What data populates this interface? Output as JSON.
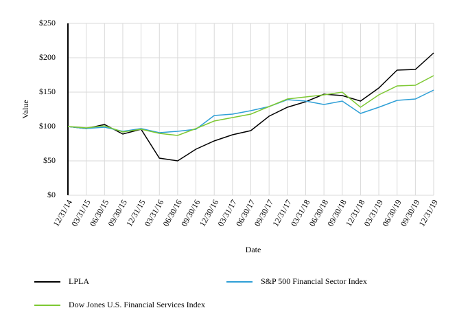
{
  "chart_data": {
    "type": "line",
    "x_label": "Date",
    "y_label": "Value",
    "categories": [
      "12/31/14",
      "03/31/15",
      "06/30/15",
      "09/30/15",
      "12/31/15",
      "03/31/16",
      "06/30/16",
      "09/30/16",
      "12/30/16",
      "03/31/17",
      "06/30/17",
      "09/30/17",
      "12/31/17",
      "03/31/18",
      "06/30/18",
      "09/30/18",
      "12/31/18",
      "03/31/19",
      "06/30/19",
      "09/30/19",
      "12/31/19"
    ],
    "series": [
      {
        "name": "LPLA",
        "color": "#000000",
        "values": [
          100,
          97,
          103,
          89,
          96,
          54,
          50,
          67,
          79,
          88,
          94,
          115,
          128,
          136,
          147,
          145,
          137,
          156,
          182,
          183,
          207
        ]
      },
      {
        "name": "S&P 500 Financial Sector Index",
        "color": "#2e9fd6",
        "values": [
          100,
          97,
          99,
          93,
          97,
          91,
          93,
          96,
          116,
          118,
          123,
          129,
          139,
          137,
          132,
          137,
          119,
          128,
          138,
          140,
          153
        ]
      },
      {
        "name": "Dow Jones U.S. Financial Services Index",
        "color": "#7dc832",
        "values": [
          100,
          98,
          101,
          92,
          96,
          90,
          87,
          97,
          108,
          113,
          118,
          129,
          140,
          143,
          146,
          150,
          128,
          146,
          159,
          160,
          174
        ]
      }
    ],
    "ylim": [
      0,
      250
    ],
    "yticks": [
      {
        "value": 0,
        "label": "$0"
      },
      {
        "value": 50,
        "label": "$50"
      },
      {
        "value": 100,
        "label": "$100"
      },
      {
        "value": 150,
        "label": "$150"
      },
      {
        "value": 200,
        "label": "$200"
      },
      {
        "value": 250,
        "label": "$250"
      }
    ],
    "grid": true,
    "legend": "bottom"
  }
}
